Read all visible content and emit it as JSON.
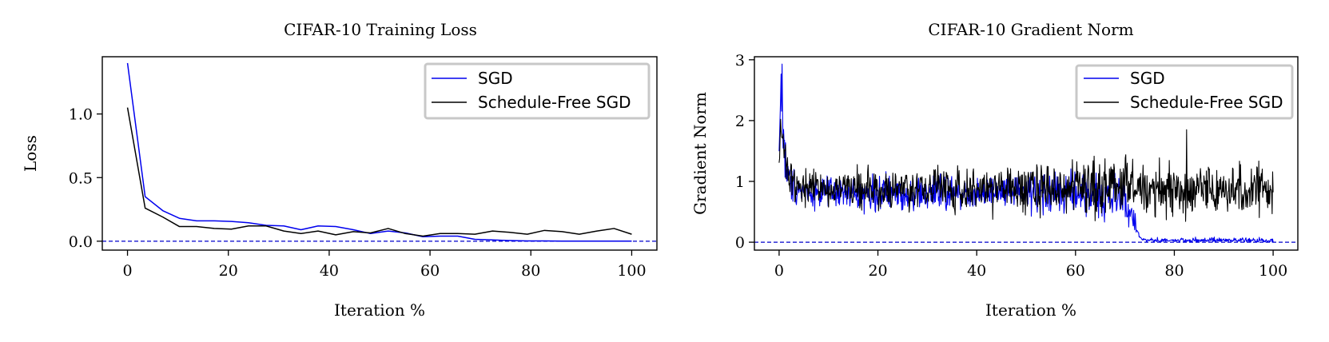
{
  "chart_data": [
    {
      "type": "line",
      "title": "CIFAR-10 Training Loss",
      "xlabel": "Iteration %",
      "ylabel": "Loss",
      "xlim": [
        -5,
        105
      ],
      "ylim": [
        -0.07,
        1.45
      ],
      "xticks": [
        0,
        20,
        40,
        60,
        80,
        100
      ],
      "xtick_labels": [
        "0",
        "20",
        "40",
        "60",
        "80",
        "100"
      ],
      "yticks": [
        0.0,
        0.5,
        1.0
      ],
      "ytick_labels": [
        "0.0",
        "0.5",
        "1.0"
      ],
      "hline": {
        "y": 0,
        "color": "#0000cc",
        "style": "dashed"
      },
      "legend": {
        "position": "top-right"
      },
      "series": [
        {
          "name": "SGD",
          "color": "#0000ee",
          "x": [
            0,
            3.5,
            7,
            10.3,
            13.7,
            17.2,
            20.6,
            24,
            27.5,
            31,
            34.4,
            37.8,
            41.3,
            44.8,
            48.2,
            51.7,
            55.1,
            58.6,
            62,
            65.5,
            68.9,
            72.4,
            75.8,
            79.3,
            82.7,
            86.2,
            89.6,
            93.1,
            96.5,
            100
          ],
          "y": [
            1.4,
            0.35,
            0.24,
            0.18,
            0.16,
            0.16,
            0.155,
            0.145,
            0.125,
            0.12,
            0.09,
            0.12,
            0.115,
            0.09,
            0.06,
            0.08,
            0.065,
            0.035,
            0.04,
            0.04,
            0.015,
            0.01,
            0.005,
            0.002,
            0.002,
            0.001,
            0.001,
            0.001,
            0.001,
            0.001
          ]
        },
        {
          "name": "Schedule-Free SGD",
          "color": "#000000",
          "x": [
            0,
            3.5,
            7,
            10.3,
            13.7,
            17.2,
            20.6,
            24,
            27.5,
            31,
            34.4,
            37.8,
            41.3,
            44.8,
            48.2,
            51.7,
            55.1,
            58.6,
            62,
            65.5,
            68.9,
            72.4,
            75.8,
            79.3,
            82.7,
            86.2,
            89.6,
            93.1,
            96.5,
            100
          ],
          "y": [
            1.05,
            0.26,
            0.19,
            0.115,
            0.115,
            0.1,
            0.095,
            0.12,
            0.12,
            0.08,
            0.06,
            0.08,
            0.05,
            0.075,
            0.065,
            0.1,
            0.06,
            0.04,
            0.06,
            0.06,
            0.055,
            0.08,
            0.07,
            0.055,
            0.085,
            0.075,
            0.055,
            0.08,
            0.1,
            0.055
          ]
        }
      ]
    },
    {
      "type": "line",
      "title": "CIFAR-10 Gradient Norm",
      "xlabel": "Iteration %",
      "ylabel": "Gradient Norm",
      "xlim": [
        -5,
        105
      ],
      "ylim": [
        -0.13,
        3.05
      ],
      "xticks": [
        0,
        20,
        40,
        60,
        80,
        100
      ],
      "xtick_labels": [
        "0",
        "20",
        "40",
        "60",
        "80",
        "100"
      ],
      "yticks": [
        0,
        1,
        2,
        3
      ],
      "ytick_labels": [
        "0",
        "1",
        "2",
        "3"
      ],
      "hline": {
        "y": 0,
        "color": "#0000cc",
        "style": "dashed"
      },
      "legend": {
        "position": "top-right"
      },
      "series": [
        {
          "name": "SGD",
          "color": "#0000ee",
          "model": "noisy",
          "n_points": 1000,
          "anchors_x": [
            0,
            0.3,
            0.6,
            1,
            2,
            5,
            10,
            30,
            60,
            70,
            72,
            73,
            75,
            100
          ],
          "anchors_mean": [
            1.4,
            2.6,
            2.2,
            1.5,
            1.0,
            0.85,
            0.8,
            0.8,
            0.8,
            0.7,
            0.35,
            0.05,
            0.03,
            0.03
          ],
          "anchors_spread": [
            0.3,
            0.35,
            0.3,
            0.3,
            0.22,
            0.17,
            0.17,
            0.2,
            0.22,
            0.25,
            0.12,
            0.03,
            0.03,
            0.03
          ],
          "peak": {
            "x": 0.6,
            "y": 2.93
          }
        },
        {
          "name": "Schedule-Free SGD",
          "color": "#000000",
          "model": "noisy",
          "n_points": 1000,
          "anchors_x": [
            0,
            0.3,
            0.6,
            1,
            2,
            5,
            10,
            30,
            60,
            70,
            75,
            100
          ],
          "anchors_mean": [
            1.3,
            2.1,
            1.8,
            1.4,
            1.0,
            0.9,
            0.88,
            0.88,
            0.88,
            0.9,
            0.85,
            0.85
          ],
          "anchors_spread": [
            0.25,
            0.3,
            0.25,
            0.25,
            0.2,
            0.2,
            0.22,
            0.24,
            0.26,
            0.28,
            0.3,
            0.3
          ],
          "peak": {
            "x": 82.5,
            "y": 1.85
          }
        }
      ]
    }
  ]
}
